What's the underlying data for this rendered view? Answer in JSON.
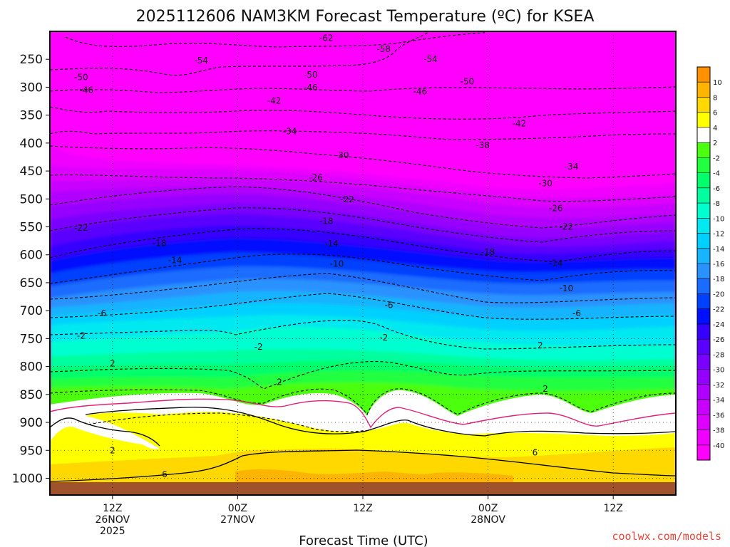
{
  "chart_data": {
    "type": "heatmap",
    "title": "2025112606 NAM3KM Forecast Temperature (ºC) for KSEA",
    "xlabel": "Forecast Time (UTC)",
    "ylabel": "",
    "credit": "coolwx.com/models",
    "x_ticks": [
      {
        "hours_from_start": 6,
        "lines": [
          "12Z",
          "26NOV",
          "2025"
        ]
      },
      {
        "hours_from_start": 18,
        "lines": [
          "00Z",
          "27NOV"
        ]
      },
      {
        "hours_from_start": 30,
        "lines": [
          "12Z"
        ]
      },
      {
        "hours_from_start": 42,
        "lines": [
          "00Z",
          "28NOV"
        ]
      },
      {
        "hours_from_start": 54,
        "lines": [
          "12Z"
        ]
      }
    ],
    "xlim_hours": [
      0,
      60
    ],
    "y_axis": "pressure (hPa)",
    "ylim": [
      1030,
      200
    ],
    "y_ticks": [
      250,
      300,
      350,
      400,
      450,
      500,
      550,
      600,
      650,
      700,
      750,
      800,
      850,
      900,
      950,
      1000
    ],
    "colorbar": {
      "levels": [
        -40,
        -38,
        -36,
        -34,
        -32,
        -30,
        -28,
        -26,
        -24,
        -22,
        -20,
        -18,
        -16,
        -14,
        -12,
        -10,
        -8,
        -6,
        -4,
        -2,
        2,
        4,
        6,
        8,
        10
      ],
      "tick_labels": [
        "10",
        "8",
        "6",
        "4",
        "2",
        "-2",
        "-4",
        "-6",
        "-8",
        "-10",
        "-12",
        "-14",
        "-16",
        "-18",
        "-20",
        "-22",
        "-24",
        "-26",
        "-28",
        "-30",
        "-32",
        "-34",
        "-36",
        "-38",
        "-40"
      ],
      "colors": [
        "#ff00ff",
        "#f000ff",
        "#dd00ff",
        "#c800ff",
        "#b000ff",
        "#9600ff",
        "#7a00ff",
        "#5a00ff",
        "#3600ff",
        "#0010ff",
        "#0040ff",
        "#1a6cff",
        "#2a92ff",
        "#18b4ff",
        "#00d0ff",
        "#00e8f0",
        "#00ffd0",
        "#00ff9e",
        "#00ff6a",
        "#20ff40",
        "#4cff10",
        "#ffffff",
        "#ffff00",
        "#ffd800",
        "#ffb400",
        "#ff9000"
      ]
    },
    "contour_labels": [
      {
        "t": 26.5,
        "p": 212,
        "v": "-62"
      },
      {
        "t": 32,
        "p": 232,
        "v": "-58"
      },
      {
        "t": 14.5,
        "p": 252,
        "v": "-54"
      },
      {
        "t": 36.5,
        "p": 250,
        "v": "-54"
      },
      {
        "t": 3,
        "p": 282,
        "v": "-50"
      },
      {
        "t": 25,
        "p": 278,
        "v": "-50"
      },
      {
        "t": 40,
        "p": 290,
        "v": "-50"
      },
      {
        "t": 3.5,
        "p": 305,
        "v": "-46"
      },
      {
        "t": 25,
        "p": 301,
        "v": "-46"
      },
      {
        "t": 35.5,
        "p": 308,
        "v": "-46"
      },
      {
        "t": 21.5,
        "p": 324,
        "v": "-42"
      },
      {
        "t": 45,
        "p": 365,
        "v": "-42"
      },
      {
        "t": 23,
        "p": 379,
        "v": "-34"
      },
      {
        "t": 41.5,
        "p": 404,
        "v": "-38"
      },
      {
        "t": 28,
        "p": 422,
        "v": "-30"
      },
      {
        "t": 50,
        "p": 442,
        "v": "-34"
      },
      {
        "t": 25.5,
        "p": 462,
        "v": "-26"
      },
      {
        "t": 47.5,
        "p": 472,
        "v": "-30"
      },
      {
        "t": 28.5,
        "p": 501,
        "v": "-22"
      },
      {
        "t": 48.5,
        "p": 517,
        "v": "-26"
      },
      {
        "t": 3,
        "p": 552,
        "v": "-22"
      },
      {
        "t": 26.5,
        "p": 540,
        "v": "-18"
      },
      {
        "t": 49.5,
        "p": 550,
        "v": "-22"
      },
      {
        "t": 10.5,
        "p": 579,
        "v": "-18"
      },
      {
        "t": 27,
        "p": 580,
        "v": "-14"
      },
      {
        "t": 42,
        "p": 595,
        "v": "-18"
      },
      {
        "t": 12,
        "p": 610,
        "v": "-14"
      },
      {
        "t": 27.5,
        "p": 616,
        "v": "-10"
      },
      {
        "t": 48.5,
        "p": 615,
        "v": "-14"
      },
      {
        "t": 49.5,
        "p": 660,
        "v": "-10"
      },
      {
        "t": 32.5,
        "p": 690,
        "v": "-6"
      },
      {
        "t": 5,
        "p": 705,
        "v": "-6"
      },
      {
        "t": 50.5,
        "p": 705,
        "v": "-6"
      },
      {
        "t": 3,
        "p": 745,
        "v": "-2"
      },
      {
        "t": 32,
        "p": 748,
        "v": "-2"
      },
      {
        "t": 20,
        "p": 765,
        "v": "-2"
      },
      {
        "t": 47,
        "p": 762,
        "v": "2"
      },
      {
        "t": 6,
        "p": 795,
        "v": "2"
      },
      {
        "t": 22,
        "p": 828,
        "v": "2"
      },
      {
        "t": 47.5,
        "p": 840,
        "v": "2"
      },
      {
        "t": 6,
        "p": 950,
        "v": "2"
      },
      {
        "t": 46.5,
        "p": 954,
        "v": "6"
      },
      {
        "t": 11,
        "p": 993,
        "v": "6"
      }
    ]
  }
}
